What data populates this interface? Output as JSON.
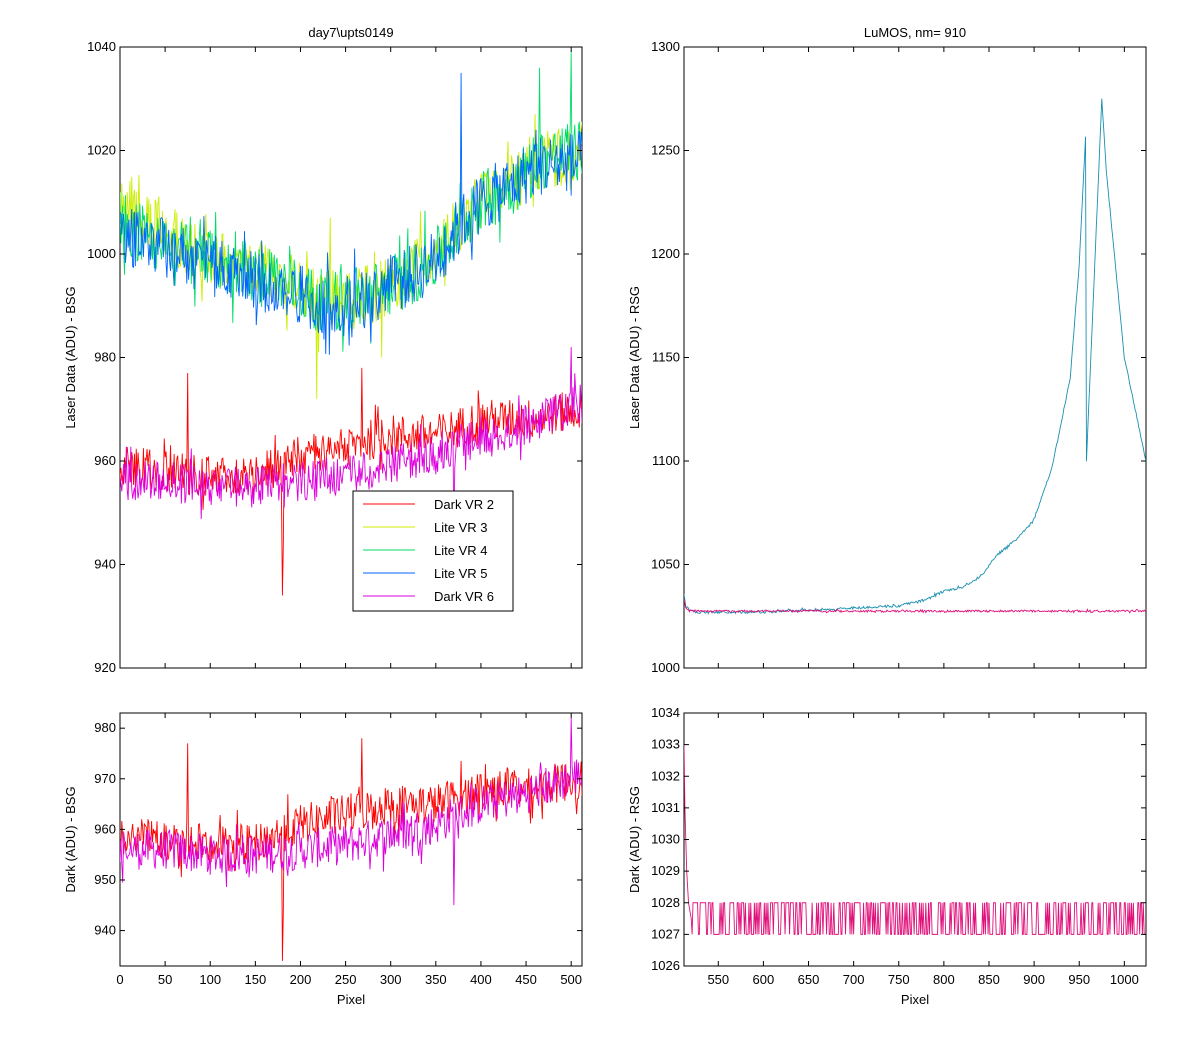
{
  "figure": {
    "window_title": "day7\\upts0149 / LuMOS",
    "background": "#ffffff"
  },
  "colors": {
    "Dark VR 2": "#ff0000",
    "Lite VR 3": "#ccee00",
    "Lite VR 4": "#00dd66",
    "Lite VR 5": "#0066ff",
    "Dark VR 6": "#dd00dd",
    "rsg_laser": "#1a8fb0",
    "rsg_dark": "#e0107a"
  },
  "chart_data": [
    {
      "id": "top-left",
      "type": "line",
      "title": "day7\\upts0149",
      "xlabel": "",
      "ylabel": "Laser Data (ADU) - BSG",
      "xlim": [
        0,
        512
      ],
      "ylim": [
        920,
        1040
      ],
      "xticks": [
        0,
        50,
        100,
        150,
        200,
        250,
        300,
        350,
        400,
        450,
        500
      ],
      "yticks": [
        920,
        940,
        960,
        980,
        1000,
        1020,
        1040
      ],
      "show_xtick_labels": false,
      "grid": false,
      "legend": {
        "placement": "lower-center",
        "entries": [
          "Dark VR 2",
          "Lite VR 3",
          "Lite VR 4",
          "Lite VR 5",
          "Dark VR 6"
        ]
      },
      "series": [
        {
          "name": "Dark VR 2",
          "color": "#ff0000",
          "noise": 4,
          "x": [
            0,
            50,
            100,
            150,
            200,
            250,
            300,
            350,
            400,
            450,
            512
          ],
          "y": [
            959,
            958,
            957,
            957,
            961,
            963,
            965,
            965,
            968,
            968,
            970
          ],
          "spikes": [
            [
              75,
              977
            ],
            [
              180,
              934
            ],
            [
              181,
              944
            ],
            [
              268,
              978
            ]
          ]
        },
        {
          "name": "Lite VR 3",
          "color": "#ccee00",
          "noise": 6,
          "x": [
            0,
            25,
            50,
            75,
            100,
            125,
            150,
            175,
            200,
            225,
            250,
            275,
            300,
            325,
            350,
            375,
            400,
            440,
            460,
            512
          ],
          "y": [
            1010,
            1008,
            1004,
            1002,
            1000,
            998,
            997,
            996,
            994,
            991,
            991,
            992,
            994,
            997,
            999,
            1006,
            1010,
            1014,
            1018,
            1020
          ],
          "spikes": [
            [
              218,
              972
            ],
            [
              220,
              981
            ],
            [
              233,
              1007
            ],
            [
              290,
              980
            ]
          ]
        },
        {
          "name": "Lite VR 4",
          "color": "#00dd66",
          "noise": 6,
          "x": [
            0,
            25,
            50,
            75,
            100,
            125,
            150,
            175,
            200,
            225,
            250,
            275,
            300,
            325,
            350,
            375,
            400,
            440,
            460,
            512
          ],
          "y": [
            1006,
            1004,
            1002,
            1000,
            999,
            997,
            996,
            995,
            993,
            991,
            991,
            992,
            994,
            996,
            999,
            1005,
            1010,
            1014,
            1018,
            1020
          ],
          "spikes": [
            [
              465,
              1036
            ],
            [
              500,
              1039
            ]
          ]
        },
        {
          "name": "Lite VR 5",
          "color": "#0066ff",
          "noise": 6,
          "x": [
            0,
            25,
            50,
            75,
            100,
            125,
            150,
            175,
            200,
            225,
            250,
            275,
            300,
            325,
            350,
            375,
            400,
            440,
            460,
            512
          ],
          "y": [
            1004,
            1003,
            1001,
            999,
            998,
            996,
            995,
            994,
            992,
            990,
            990,
            992,
            994,
            996,
            999,
            1005,
            1010,
            1014,
            1017,
            1018
          ],
          "spikes": [
            [
              378,
              1035
            ],
            [
              455,
              1016
            ]
          ]
        },
        {
          "name": "Dark VR 6",
          "color": "#dd00dd",
          "noise": 4,
          "x": [
            0,
            50,
            100,
            150,
            200,
            250,
            300,
            350,
            400,
            450,
            512
          ],
          "y": [
            956,
            956,
            955,
            955,
            956,
            957,
            959,
            961,
            965,
            967,
            971
          ],
          "spikes": [
            [
              370,
              945
            ],
            [
              500,
              982
            ]
          ]
        }
      ]
    },
    {
      "id": "top-right",
      "type": "line",
      "title": "LuMOS, nm= 910",
      "xlabel": "",
      "ylabel": "Laser Data (ADU) - RSG",
      "xlim": [
        512,
        1024
      ],
      "ylim": [
        1000,
        1300
      ],
      "xticks": [
        550,
        600,
        650,
        700,
        750,
        800,
        850,
        900,
        950,
        1000
      ],
      "yticks": [
        1000,
        1050,
        1100,
        1150,
        1200,
        1250,
        1300
      ],
      "show_xtick_labels": false,
      "grid": false,
      "series": [
        {
          "name": "",
          "color": "#1a8fb0",
          "noise": 0.6,
          "x": [
            512,
            514,
            518,
            525,
            550,
            600,
            650,
            700,
            750,
            780,
            800,
            820,
            840,
            860,
            880,
            900,
            920,
            940,
            950,
            957,
            958,
            975,
            980,
            1000,
            1024
          ],
          "y": [
            1035,
            1030,
            1028,
            1027,
            1027,
            1027,
            1028,
            1029,
            1030,
            1033,
            1037,
            1039,
            1044,
            1055,
            1062,
            1072,
            1097,
            1140,
            1195,
            1257,
            1100,
            1275,
            1240,
            1150,
            1100
          ]
        },
        {
          "name": "",
          "color": "#e0107a",
          "noise": 0.5,
          "x": [
            512,
            514,
            518,
            525,
            1024
          ],
          "y": [
            1033,
            1029,
            1027.5,
            1027.5,
            1027.5
          ]
        }
      ]
    },
    {
      "id": "bottom-left",
      "type": "line",
      "title": "",
      "xlabel": "Pixel",
      "ylabel": "Dark (ADU) - BSG",
      "xlim": [
        0,
        512
      ],
      "ylim": [
        933,
        983
      ],
      "xticks": [
        0,
        50,
        100,
        150,
        200,
        250,
        300,
        350,
        400,
        450,
        500
      ],
      "yticks": [
        940,
        950,
        960,
        970,
        980
      ],
      "show_xtick_labels": true,
      "grid": false,
      "series": [
        {
          "name": "Dark VR 2",
          "color": "#ff0000",
          "noise": 4,
          "x": [
            0,
            50,
            100,
            150,
            200,
            250,
            300,
            350,
            400,
            450,
            512
          ],
          "y": [
            959,
            958,
            957,
            957,
            961,
            963,
            965,
            965,
            968,
            968,
            970
          ],
          "spikes": [
            [
              75,
              977
            ],
            [
              180,
              934
            ],
            [
              181,
              944
            ],
            [
              268,
              978
            ]
          ]
        },
        {
          "name": "Dark VR 6",
          "color": "#dd00dd",
          "noise": 4,
          "x": [
            0,
            50,
            100,
            150,
            200,
            250,
            300,
            350,
            400,
            450,
            512
          ],
          "y": [
            956,
            956,
            955,
            955,
            956,
            957,
            959,
            961,
            965,
            967,
            971
          ],
          "spikes": [
            [
              370,
              945
            ],
            [
              500,
              982
            ]
          ]
        }
      ]
    },
    {
      "id": "bottom-right",
      "type": "line",
      "title": "",
      "xlabel": "Pixel",
      "ylabel": "Dark (ADU) - RSG",
      "xlim": [
        512,
        1024
      ],
      "ylim": [
        1026,
        1034
      ],
      "xticks": [
        550,
        600,
        650,
        700,
        750,
        800,
        850,
        900,
        950,
        1000
      ],
      "yticks": [
        1026,
        1027,
        1028,
        1029,
        1030,
        1031,
        1032,
        1033,
        1034
      ],
      "show_xtick_labels": true,
      "grid": false,
      "series": [
        {
          "name": "",
          "color": "#e0107a",
          "noise": 0,
          "toggle": [
            1027,
            1028
          ],
          "x": [
            512,
            513,
            515,
            517,
            520,
            1024
          ],
          "y": [
            1033,
            1031,
            1029,
            1028,
            1027.5,
            1027.5
          ]
        }
      ]
    }
  ]
}
